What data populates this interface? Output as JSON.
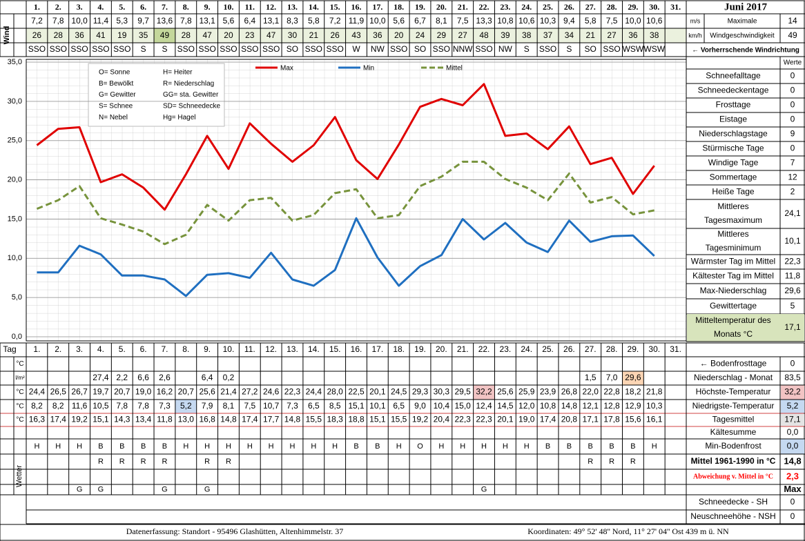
{
  "chart_data": {
    "type": "line",
    "categories": [
      "1.",
      "2.",
      "3.",
      "4.",
      "5.",
      "6.",
      "7.",
      "8.",
      "9.",
      "10.",
      "11.",
      "12.",
      "13.",
      "14.",
      "15.",
      "16.",
      "17.",
      "18.",
      "19.",
      "20.",
      "21.",
      "22.",
      "23.",
      "24.",
      "25.",
      "26.",
      "27.",
      "28.",
      "29.",
      "30.",
      "31."
    ],
    "ylim": [
      0,
      35
    ],
    "yticks": [
      {
        "value": 0,
        "label": "0,0"
      },
      {
        "value": 5,
        "label": "5,0"
      },
      {
        "value": 10,
        "label": "10,0"
      },
      {
        "value": 15,
        "label": "15,0"
      },
      {
        "value": 20,
        "label": "20,0"
      },
      {
        "value": 25,
        "label": "25,0"
      },
      {
        "value": 30,
        "label": "30,0"
      },
      {
        "value": 35,
        "label": "35,0"
      }
    ],
    "grid": true,
    "legend": "top",
    "series": [
      {
        "name": "Max",
        "color": "#e00000",
        "line_style": "solid",
        "values": [
          24.4,
          26.5,
          26.7,
          19.7,
          20.7,
          19.0,
          16.2,
          20.7,
          25.6,
          21.4,
          27.2,
          24.6,
          22.3,
          24.4,
          28.0,
          22.5,
          20.1,
          24.5,
          29.3,
          30.3,
          29.5,
          32.2,
          25.6,
          25.9,
          23.9,
          26.8,
          22.0,
          22.8,
          18.2,
          21.8,
          null
        ],
        "value_labels": [
          "24,4",
          "26,5",
          "26,7",
          "19,7",
          "20,7",
          "19,0",
          "16,2",
          "20,7",
          "25,6",
          "21,4",
          "27,2",
          "24,6",
          "22,3",
          "24,4",
          "28,0",
          "22,5",
          "20,1",
          "24,5",
          "29,3",
          "30,3",
          "29,5",
          "32,2",
          "25,6",
          "25,9",
          "23,9",
          "26,8",
          "22,0",
          "22,8",
          "18,2",
          "21,8",
          null
        ]
      },
      {
        "name": "Min",
        "color": "#1f6fc0",
        "line_style": "solid",
        "values": [
          8.2,
          8.2,
          11.6,
          10.5,
          7.8,
          7.8,
          7.3,
          5.2,
          7.9,
          8.1,
          7.5,
          10.7,
          7.3,
          6.5,
          8.5,
          15.1,
          10.1,
          6.5,
          9.0,
          10.4,
          15.0,
          12.4,
          14.5,
          12.0,
          10.8,
          14.8,
          12.1,
          12.8,
          12.9,
          10.3,
          null
        ],
        "value_labels": [
          "8,2",
          "8,2",
          "11,6",
          "10,5",
          "7,8",
          "7,8",
          "7,3",
          "5,2",
          "7,9",
          "8,1",
          "7,5",
          "10,7",
          "7,3",
          "6,5",
          "8,5",
          "15,1",
          "10,1",
          "6,5",
          "9,0",
          "10,4",
          "15,0",
          "12,4",
          "14,5",
          "12,0",
          "10,8",
          "14,8",
          "12,1",
          "12,8",
          "12,9",
          "10,3",
          null
        ]
      },
      {
        "name": "Mittel",
        "color": "#77933c",
        "line_style": "dashed",
        "values": [
          16.3,
          17.4,
          19.2,
          15.1,
          14.3,
          13.4,
          11.8,
          13.0,
          16.8,
          14.8,
          17.4,
          17.7,
          14.8,
          15.5,
          18.3,
          18.8,
          15.1,
          15.5,
          19.2,
          20.4,
          22.3,
          22.3,
          20.1,
          19.0,
          17.4,
          20.8,
          17.1,
          17.8,
          15.6,
          16.1,
          null
        ],
        "value_labels": [
          "16,3",
          "17,4",
          "19,2",
          "15,1",
          "14,3",
          "13,4",
          "11,8",
          "13,0",
          "16,8",
          "14,8",
          "17,4",
          "17,7",
          "14,8",
          "15,5",
          "18,3",
          "18,8",
          "15,1",
          "15,5",
          "19,2",
          "20,4",
          "22,3",
          "22,3",
          "20,1",
          "19,0",
          "17,4",
          "20,8",
          "17,1",
          "17,8",
          "15,6",
          "16,1",
          null
        ]
      }
    ]
  },
  "title": "Juni 2017",
  "wind": {
    "label": "Wind",
    "unit_ms": "m/s",
    "unit_kmh": "km/h",
    "max_ms_label": "Maximale",
    "max_kmh_label": "Windgeschwindigkeit",
    "max_ms": 14,
    "max_kmh": 49,
    "direction_label": "← Vorherrschende Windrichtung",
    "ms": [
      "7,2",
      "7,8",
      "10,0",
      "11,4",
      "5,3",
      "9,7",
      "13,6",
      "7,8",
      "13,1",
      "5,6",
      "6,4",
      "13,1",
      "8,3",
      "5,8",
      "7,2",
      "11,9",
      "10,0",
      "5,6",
      "6,7",
      "8,1",
      "7,5",
      "13,3",
      "10,8",
      "10,6",
      "10,3",
      "9,4",
      "5,8",
      "7,5",
      "10,0",
      "10,6"
    ],
    "kmh": [
      26,
      28,
      36,
      41,
      19,
      35,
      49,
      28,
      47,
      20,
      23,
      47,
      30,
      21,
      26,
      43,
      36,
      20,
      24,
      29,
      27,
      48,
      39,
      38,
      37,
      34,
      21,
      27,
      36,
      38
    ],
    "direction": [
      "SSO",
      "SSO",
      "SSO",
      "SSO",
      "SSO",
      "S",
      "S",
      "SSO",
      "SSO",
      "SSO",
      "SSO",
      "SSO",
      "SO",
      "SSO",
      "SSO",
      "W",
      "NW",
      "SSO",
      "SO",
      "SSO",
      "NNW",
      "SSO",
      "NW",
      "S",
      "SSO",
      "S",
      "SO",
      "SSO",
      "WSW",
      "WSW"
    ]
  },
  "weather_codes": [
    "O= Sonne",
    "H= Heiter",
    "B= Bewölkt",
    "R= Niederschlag",
    "G= Gewitter",
    "GG= sta. Gewitter",
    "S= Schnee",
    "SD= Schneedecke",
    "N= Nebel",
    "Hg= Hagel"
  ],
  "stats": {
    "header": "Werte",
    "rows": [
      {
        "label": [
          "Schneefalltage"
        ],
        "value": "0"
      },
      {
        "label": [
          "Schneedeckentage"
        ],
        "value": "0"
      },
      {
        "label": [
          "Frosttage"
        ],
        "value": "0"
      },
      {
        "label": [
          "Eistage"
        ],
        "value": "0"
      },
      {
        "label": [
          "Niederschlagstage"
        ],
        "value": "9"
      },
      {
        "label": [
          "Stürmische Tage"
        ],
        "value": "0"
      },
      {
        "label": [
          "Windige Tage"
        ],
        "value": "7"
      },
      {
        "label": [
          "Sommertage"
        ],
        "value": "12"
      },
      {
        "label": [
          "Heiße Tage"
        ],
        "value": "2"
      },
      {
        "label": [
          "Mittleres",
          "Tagesmaximum"
        ],
        "value": "24,1"
      },
      {
        "label": [
          "Mittleres",
          "Tagesminimum"
        ],
        "value": "10,1"
      },
      {
        "label": [
          "Wärmster Tag im Mittel"
        ],
        "value": "22,3"
      },
      {
        "label": [
          "Kältester Tag im Mittel"
        ],
        "value": "11,8"
      },
      {
        "label": [
          "Max-Niederschlag"
        ],
        "value": "29,6"
      },
      {
        "label": [
          "Gewittertage"
        ],
        "value": "5"
      },
      {
        "label": [
          "Mitteltemperatur des",
          "Monats °C"
        ],
        "value": "17,1",
        "fill": "#d8e4bc"
      }
    ]
  },
  "table": {
    "day_label": "Tag",
    "units": [
      "°C",
      "l/m²",
      "°C",
      "°C",
      "°C"
    ],
    "weather_label": "Wetter",
    "precipitation": [
      null,
      null,
      null,
      "27,4",
      "2,2",
      "6,6",
      "2,6",
      null,
      "6,4",
      "0,2",
      null,
      null,
      null,
      null,
      null,
      null,
      null,
      null,
      null,
      null,
      null,
      null,
      null,
      null,
      null,
      null,
      "1,5",
      "7,0",
      "29,6",
      null,
      null
    ],
    "weather": [
      [
        "H",
        "H",
        "H",
        "B",
        "B",
        "B",
        "B",
        "H",
        "H",
        "H",
        "H",
        "H",
        "H",
        "H",
        "H",
        "B",
        "B",
        "H",
        "O",
        "H",
        "H",
        "H",
        "H",
        "H",
        "B",
        "B",
        "B",
        "B",
        "B",
        "H",
        null
      ],
      [
        null,
        null,
        null,
        "R",
        "R",
        "R",
        "R",
        null,
        "R",
        "R",
        null,
        null,
        null,
        null,
        null,
        null,
        null,
        null,
        null,
        null,
        null,
        null,
        null,
        null,
        null,
        null,
        "R",
        "R",
        "R",
        null,
        null
      ],
      [
        null,
        null,
        "G",
        "G",
        null,
        null,
        "G",
        null,
        "G",
        null,
        null,
        null,
        null,
        null,
        null,
        null,
        null,
        null,
        null,
        null,
        null,
        "G",
        null,
        null,
        null,
        null,
        null,
        null,
        null,
        null,
        null
      ]
    ]
  },
  "summary": [
    {
      "label": "← Bodenfrosttage",
      "value": "0"
    },
    {
      "label": "Niederschlag - Monat",
      "value": "83,5"
    },
    {
      "label": "Höchste-Temperatur",
      "value": "32,2",
      "fill": "#f2c4c4"
    },
    {
      "label": "Niedrigste-Temperatur",
      "value": "5,2",
      "fill": "#c5d9f1"
    },
    {
      "label": "Tagesmittel",
      "value": "17,1",
      "fill": "#e4e4e4"
    },
    {
      "label": "Kältesumme",
      "value": "0,0"
    },
    {
      "label": "Min-Bodenfrost",
      "value": "0,0",
      "fill": "#c5d9f1"
    },
    {
      "label": "Mittel 1961-1990 in °C",
      "value": "14,8",
      "style": "bold"
    },
    {
      "label": "Abweichung v. Mittel in °C",
      "value": "2,3",
      "style": "bold",
      "color": "#ff0000"
    },
    {
      "value": "Max",
      "style": "bold"
    },
    {
      "label": "Schneedecke -  SH",
      "value": "0"
    },
    {
      "label": "Neuschneehöhe - NSH",
      "value": "0"
    }
  ],
  "footer": {
    "left": "Datenerfassung:  Standort -  95496  Glashütten, Altenhimmelstr. 37",
    "right": "Koordinaten:  49° 52' 48'' Nord,   11° 27' 04'' Ost   439 m ü. NN"
  }
}
